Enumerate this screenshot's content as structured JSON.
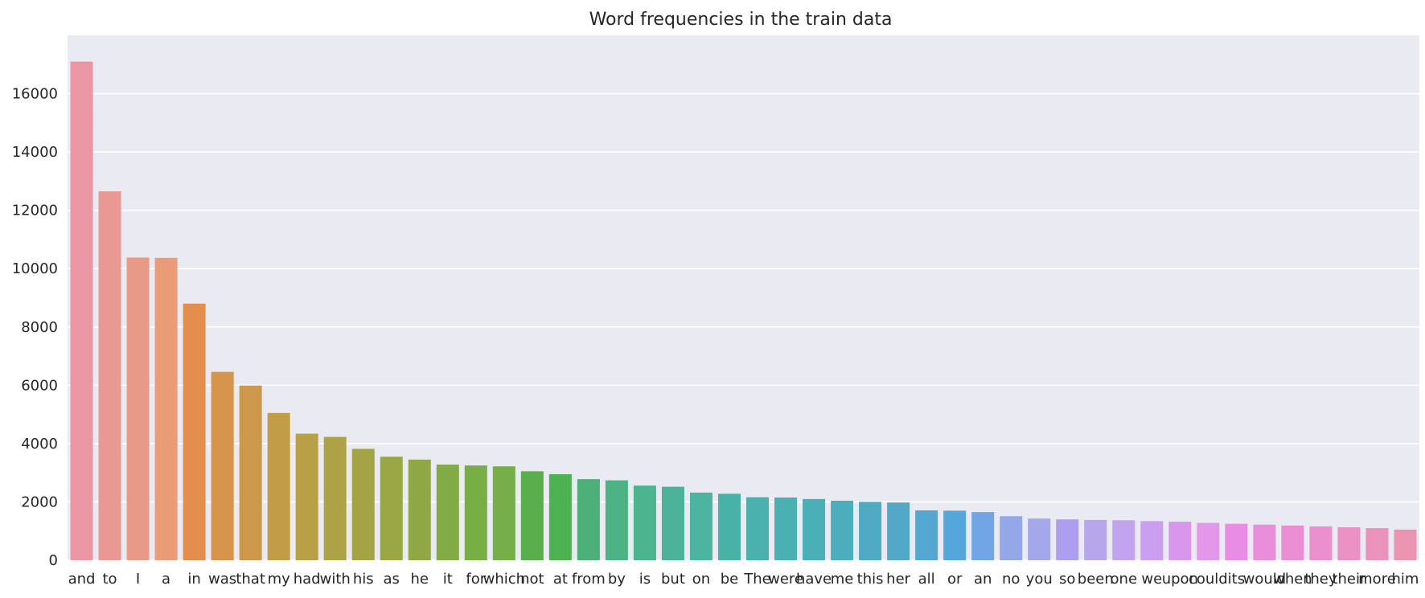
{
  "chart_data": {
    "type": "bar",
    "title": "Word frequencies in the train data",
    "xlabel": "",
    "ylabel": "",
    "categories": [
      "and",
      "to",
      "I",
      "a",
      "in",
      "was",
      "that",
      "my",
      "had",
      "with",
      "his",
      "as",
      "he",
      "it",
      "for",
      "which",
      "not",
      "at",
      "from",
      "by",
      "is",
      "but",
      "on",
      "be",
      "The",
      "were",
      "have",
      "me",
      "this",
      "her",
      "all",
      "or",
      "an",
      "no",
      "you",
      "so",
      "been",
      "one",
      "we",
      "upon",
      "could",
      "its",
      "would",
      "when",
      "they",
      "their",
      "more",
      "him"
    ],
    "values": [
      17100,
      12650,
      10380,
      10370,
      8800,
      6460,
      5990,
      5050,
      4340,
      4230,
      3820,
      3550,
      3450,
      3280,
      3250,
      3220,
      3050,
      2950,
      2780,
      2740,
      2560,
      2520,
      2320,
      2280,
      2160,
      2150,
      2100,
      2040,
      2000,
      1980,
      1710,
      1700,
      1650,
      1510,
      1430,
      1400,
      1380,
      1370,
      1340,
      1320,
      1280,
      1250,
      1220,
      1190,
      1160,
      1130,
      1100,
      1050
    ],
    "ylim": [
      0,
      18000
    ],
    "yticks": [
      0,
      2000,
      4000,
      6000,
      8000,
      10000,
      12000,
      14000,
      16000
    ],
    "grid": true,
    "colors": [
      "#ea96a3",
      "#ea9894",
      "#e99a86",
      "#e99c77",
      "#e38e4f",
      "#d7944b",
      "#cd9849",
      "#c29c47",
      "#b9a046",
      "#aea246",
      "#a4a445",
      "#99a745",
      "#8fa845",
      "#83ab45",
      "#77ae46",
      "#76ae49",
      "#5aae4c",
      "#4eb152",
      "#4db079",
      "#4db384",
      "#4cb590",
      "#4db29a",
      "#4db4a1",
      "#49b2a6",
      "#4bb1ac",
      "#4ab0b2",
      "#4bafb8",
      "#4cadbd",
      "#4fabc1",
      "#51a9c7",
      "#54a7d0",
      "#55a7db",
      "#72a5e5",
      "#94a7e8",
      "#a2a8e9",
      "#ad9ef0",
      "#b7a6e9",
      "#c2a3ee",
      "#cb9fef",
      "#d896ed",
      "#e397ea",
      "#e88de3",
      "#e98cd9",
      "#e98ed2",
      "#ea8fcb",
      "#ea91c3",
      "#ea92bb",
      "#ea94b2"
    ],
    "background": "#eaeaf2",
    "gridColor": "#ffffff"
  }
}
